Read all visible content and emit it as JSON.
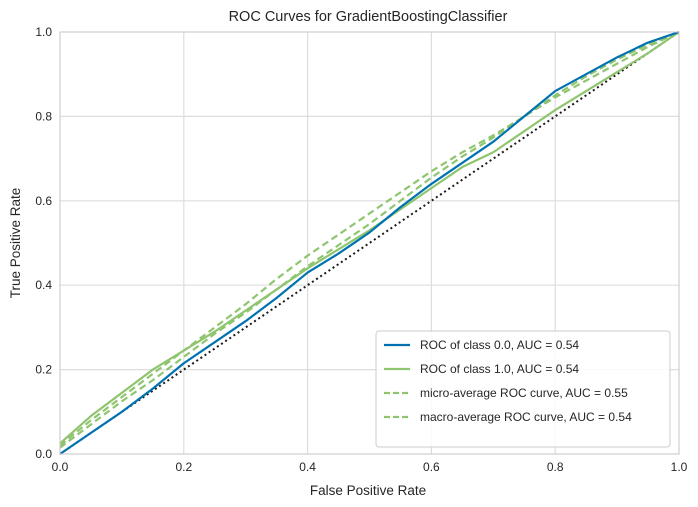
{
  "chart_data": {
    "type": "line",
    "title": "ROC Curves for GradientBoostingClassifier",
    "xlabel": "False Positive Rate",
    "ylabel": "True Positive Rate",
    "xlim": [
      0,
      1
    ],
    "ylim": [
      0,
      1
    ],
    "xticks": [
      "0.0",
      "0.2",
      "0.4",
      "0.6",
      "0.8",
      "1.0"
    ],
    "yticks": [
      "0.0",
      "0.2",
      "0.4",
      "0.6",
      "0.8",
      "1.0"
    ],
    "grid": true,
    "legend_position": "bottom-right",
    "series": [
      {
        "name": "ROC of class 0.0, AUC = 0.54",
        "color": "#0072B2",
        "style": "solid",
        "x": [
          0.0,
          0.05,
          0.1,
          0.15,
          0.2,
          0.25,
          0.3,
          0.35,
          0.4,
          0.45,
          0.5,
          0.55,
          0.6,
          0.65,
          0.7,
          0.75,
          0.8,
          0.85,
          0.9,
          0.95,
          1.0
        ],
        "y": [
          0.0,
          0.05,
          0.1,
          0.155,
          0.215,
          0.265,
          0.315,
          0.37,
          0.43,
          0.475,
          0.525,
          0.585,
          0.64,
          0.69,
          0.74,
          0.8,
          0.86,
          0.9,
          0.94,
          0.975,
          1.0
        ]
      },
      {
        "name": "ROC of class 1.0, AUC = 0.54",
        "color": "#8FC56E",
        "style": "solid",
        "x": [
          0.0,
          0.05,
          0.1,
          0.15,
          0.2,
          0.25,
          0.3,
          0.35,
          0.4,
          0.45,
          0.5,
          0.55,
          0.6,
          0.65,
          0.7,
          0.75,
          0.8,
          0.85,
          0.9,
          0.95,
          1.0
        ],
        "y": [
          0.025,
          0.09,
          0.145,
          0.2,
          0.245,
          0.29,
          0.34,
          0.39,
          0.44,
          0.485,
          0.53,
          0.58,
          0.63,
          0.68,
          0.715,
          0.765,
          0.815,
          0.86,
          0.905,
          0.95,
          1.0
        ]
      },
      {
        "name": "micro-average ROC curve, AUC = 0.55",
        "color": "#8FC56E",
        "style": "dashed",
        "x": [
          0.0,
          0.05,
          0.1,
          0.15,
          0.2,
          0.25,
          0.3,
          0.35,
          0.4,
          0.45,
          0.5,
          0.55,
          0.6,
          0.65,
          0.7,
          0.75,
          0.8,
          0.85,
          0.9,
          0.95,
          1.0
        ],
        "y": [
          0.02,
          0.08,
          0.135,
          0.19,
          0.245,
          0.3,
          0.355,
          0.415,
          0.47,
          0.52,
          0.57,
          0.62,
          0.67,
          0.715,
          0.755,
          0.8,
          0.845,
          0.885,
          0.925,
          0.965,
          1.0
        ]
      },
      {
        "name": "macro-average ROC curve, AUC = 0.54",
        "color": "#8FC56E",
        "style": "dashed",
        "x": [
          0.0,
          0.05,
          0.1,
          0.15,
          0.2,
          0.25,
          0.3,
          0.35,
          0.4,
          0.45,
          0.5,
          0.55,
          0.6,
          0.65,
          0.7,
          0.75,
          0.8,
          0.85,
          0.9,
          0.95,
          1.0
        ],
        "y": [
          0.015,
          0.07,
          0.125,
          0.175,
          0.23,
          0.285,
          0.335,
          0.39,
          0.445,
          0.495,
          0.545,
          0.6,
          0.655,
          0.705,
          0.75,
          0.8,
          0.85,
          0.895,
          0.935,
          0.97,
          1.0
        ]
      }
    ],
    "reference_line": {
      "x": [
        0,
        1
      ],
      "y": [
        0,
        1
      ],
      "color": "#1a1a1a",
      "style": "dotted"
    }
  }
}
